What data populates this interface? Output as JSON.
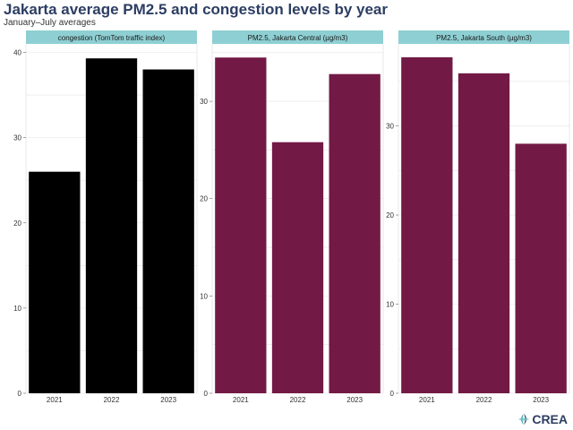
{
  "header": {
    "title": "Jakarta average PM2.5 and congestion levels by year",
    "subtitle": "January–July averages"
  },
  "logo": {
    "text": "CREA",
    "icon": "crea-leaf-icon"
  },
  "colors": {
    "strip": "#8ecfd3",
    "congestion_bar": "#000000",
    "pm_bar": "#721a45",
    "grid": "#e4e4e4",
    "axis_text": "#333333"
  },
  "chart_data": [
    {
      "type": "bar",
      "title": "congestion (TomTom traffic index)",
      "categories": [
        "2021",
        "2022",
        "2023"
      ],
      "values": [
        26,
        39.3,
        38
      ],
      "ylim": [
        0,
        41
      ],
      "yticks": [
        0,
        10,
        20,
        30,
        40
      ],
      "xlabel": "",
      "ylabel": ""
    },
    {
      "type": "bar",
      "title": "PM2.5, Jakarta Central (µg/m3)",
      "categories": [
        "2021",
        "2022",
        "2023"
      ],
      "values": [
        34.5,
        25.8,
        32.8
      ],
      "ylim": [
        0,
        35.9
      ],
      "yticks": [
        0,
        10,
        20,
        30
      ],
      "xlabel": "",
      "ylabel": ""
    },
    {
      "type": "bar",
      "title": "PM2.5, Jakarta South (µg/m3)",
      "categories": [
        "2021",
        "2022",
        "2023"
      ],
      "values": [
        37.7,
        35.9,
        28
      ],
      "ylim": [
        0,
        39.2
      ],
      "yticks": [
        0,
        10,
        20,
        30
      ],
      "xlabel": "",
      "ylabel": ""
    }
  ]
}
